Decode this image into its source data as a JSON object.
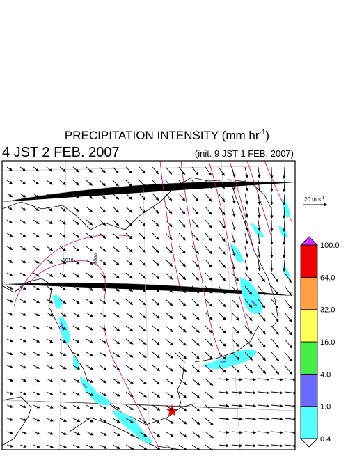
{
  "title": {
    "text": "PRECIPITATION INTENSITY (mm hr",
    "superscript": "-1",
    "close": ")"
  },
  "valid_time": "4 JST 2 FEB. 2007",
  "init_time": "(init. 9 JST 1 FEB. 2007)",
  "wind_reference": {
    "text": "20 m s",
    "superscript": "-1"
  },
  "colorbar": {
    "levels": [
      "0.4",
      "1.0",
      "4.0",
      "16.0",
      "32.0",
      "64.0",
      "100.0"
    ],
    "colors": [
      "#55ffff",
      "#6a6aff",
      "#44ee44",
      "#ffff55",
      "#ffa040",
      "#ee0000"
    ],
    "over_color": "#cc33ff",
    "under_color": "#ffffff"
  },
  "isobar_labels": [
    "1010",
    "1000"
  ]
}
